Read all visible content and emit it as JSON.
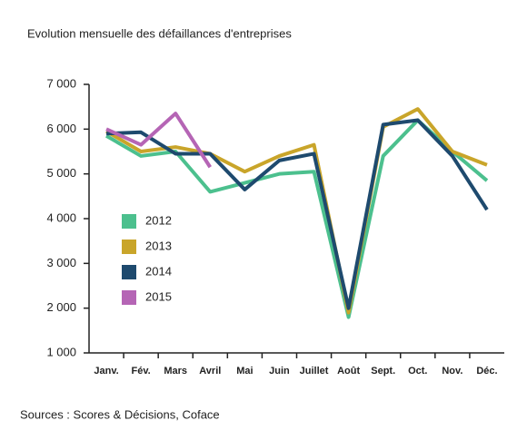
{
  "chart_data": {
    "type": "line",
    "title": "Evolution mensuelle des défaillances d'entreprises",
    "source": "Sources : Scores & Décisions, Coface",
    "categories": [
      "Janv.",
      "Fév.",
      "Mars",
      "Avril",
      "Mai",
      "Juin",
      "Juillet",
      "Août",
      "Sept.",
      "Oct.",
      "Nov.",
      "Déc."
    ],
    "series": [
      {
        "name": "2012",
        "color": "#4cc08e",
        "values": [
          5850,
          5400,
          5500,
          4600,
          4800,
          5000,
          5050,
          1800,
          5400,
          6200,
          5500,
          4850
        ]
      },
      {
        "name": "2013",
        "color": "#c9a52a",
        "values": [
          5950,
          5500,
          5600,
          5450,
          5050,
          5400,
          5650,
          1900,
          6050,
          6450,
          5500,
          5200
        ]
      },
      {
        "name": "2014",
        "color": "#1e4a6e",
        "values": [
          5900,
          5930,
          5450,
          5450,
          4650,
          5300,
          5450,
          2000,
          6100,
          6200,
          5400,
          4200
        ]
      },
      {
        "name": "2015",
        "color": "#b565b5",
        "values": [
          6000,
          5650,
          6350,
          5150,
          null,
          null,
          null,
          null,
          null,
          null,
          null,
          null
        ]
      }
    ],
    "ylim": [
      1000,
      7000
    ],
    "yticks": [
      {
        "value": 1000,
        "label": "1 000"
      },
      {
        "value": 2000,
        "label": "2 000"
      },
      {
        "value": 3000,
        "label": "3 000"
      },
      {
        "value": 4000,
        "label": "4 000"
      },
      {
        "value": 5000,
        "label": "5 000"
      },
      {
        "value": 6000,
        "label": "6 000"
      },
      {
        "value": 7000,
        "label": "7 000"
      }
    ],
    "legend": "left"
  }
}
